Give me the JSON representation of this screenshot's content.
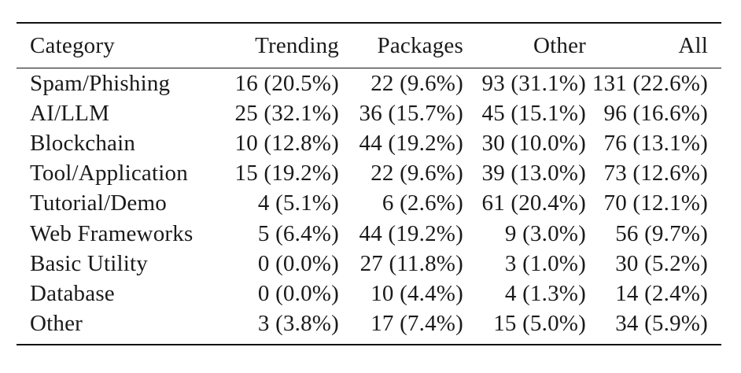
{
  "table": {
    "headers": [
      "Category",
      "Trending",
      "Packages",
      "Other",
      "All"
    ],
    "rows": [
      [
        "Spam/Phishing",
        "16 (20.5%)",
        "22 (9.6%)",
        "93 (31.1%)",
        "131 (22.6%)"
      ],
      [
        "AI/LLM",
        "25 (32.1%)",
        "36 (15.7%)",
        "45 (15.1%)",
        "96 (16.6%)"
      ],
      [
        "Blockchain",
        "10 (12.8%)",
        "44 (19.2%)",
        "30 (10.0%)",
        "76 (13.1%)"
      ],
      [
        "Tool/Application",
        "15 (19.2%)",
        "22 (9.6%)",
        "39 (13.0%)",
        "73 (12.6%)"
      ],
      [
        "Tutorial/Demo",
        "4 (5.1%)",
        "6 (2.6%)",
        "61 (20.4%)",
        "70 (12.1%)"
      ],
      [
        "Web Frameworks",
        "5 (6.4%)",
        "44 (19.2%)",
        "9 (3.0%)",
        "56 (9.7%)"
      ],
      [
        "Basic Utility",
        "0 (0.0%)",
        "27 (11.8%)",
        "3 (1.0%)",
        "30 (5.2%)"
      ],
      [
        "Database",
        "0 (0.0%)",
        "10 (4.4%)",
        "4 (1.3%)",
        "14 (2.4%)"
      ],
      [
        "Other",
        "3 (3.8%)",
        "17 (7.4%)",
        "15 (5.0%)",
        "34 (5.9%)"
      ]
    ]
  }
}
